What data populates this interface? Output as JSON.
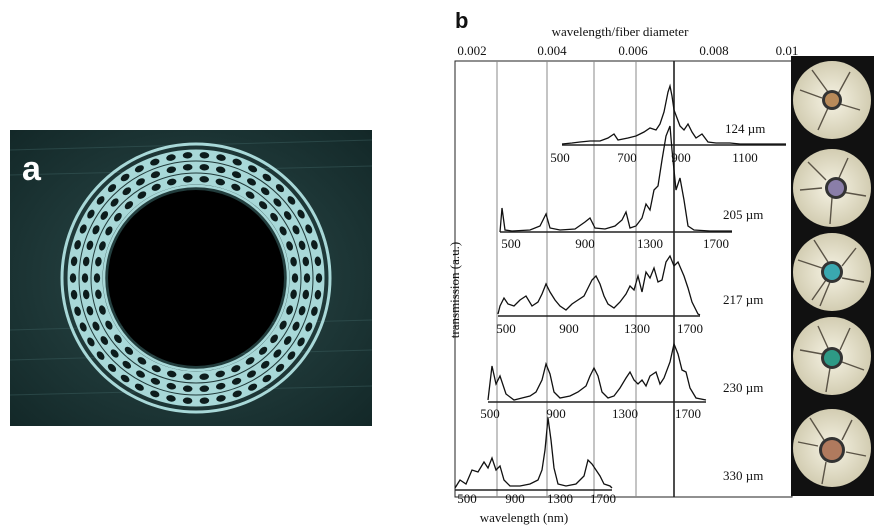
{
  "panel_a": {
    "label": "a"
  },
  "panel_b": {
    "label": "b",
    "top_axis_title": "wavelength/fiber diameter",
    "top_ticks": [
      "0.002",
      "0.004",
      "0.006",
      "0.008",
      "0.01"
    ],
    "y_axis_title": "transmission (a.u.)",
    "bottom_axis_title": "wavelength (nm)",
    "subplots": [
      {
        "label": "124 µm",
        "ticks": [
          "500",
          "700",
          "900",
          "1100"
        ]
      },
      {
        "label": "205 µm",
        "ticks": [
          "500",
          "900",
          "1300",
          "1700"
        ]
      },
      {
        "label": "217 µm",
        "ticks": [
          "500",
          "900",
          "1300",
          "1700"
        ]
      },
      {
        "label": "230 µm",
        "ticks": [
          "500",
          "900",
          "1300",
          "1700"
        ]
      },
      {
        "label": "330 µm",
        "ticks": [
          "500",
          "900",
          "1300",
          "1700"
        ]
      }
    ]
  },
  "colors": {
    "panel_a_bg": "#1f3a3a",
    "fiber_rings": "#a8d8d8",
    "core": "#000000",
    "core_colors": [
      "#b88a5a",
      "#8a7ea8",
      "#3aa8b0",
      "#2e9a86",
      "#b07a5e"
    ]
  }
}
